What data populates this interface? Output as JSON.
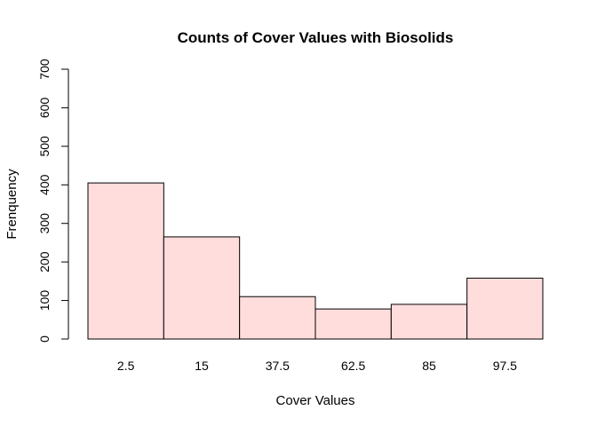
{
  "chart_data": {
    "type": "bar",
    "title": "Counts of Cover Values with Biosolids",
    "xlabel": "Cover Values",
    "ylabel": "Frenquency",
    "categories": [
      "2.5",
      "15",
      "37.5",
      "62.5",
      "85",
      "97.5"
    ],
    "values": [
      405,
      265,
      110,
      78,
      90,
      158
    ],
    "ylim": [
      0,
      700
    ],
    "yticks": [
      "0",
      "100",
      "200",
      "300",
      "400",
      "500",
      "600",
      "700"
    ],
    "bar_color": "#ffdddd",
    "grid": false
  }
}
